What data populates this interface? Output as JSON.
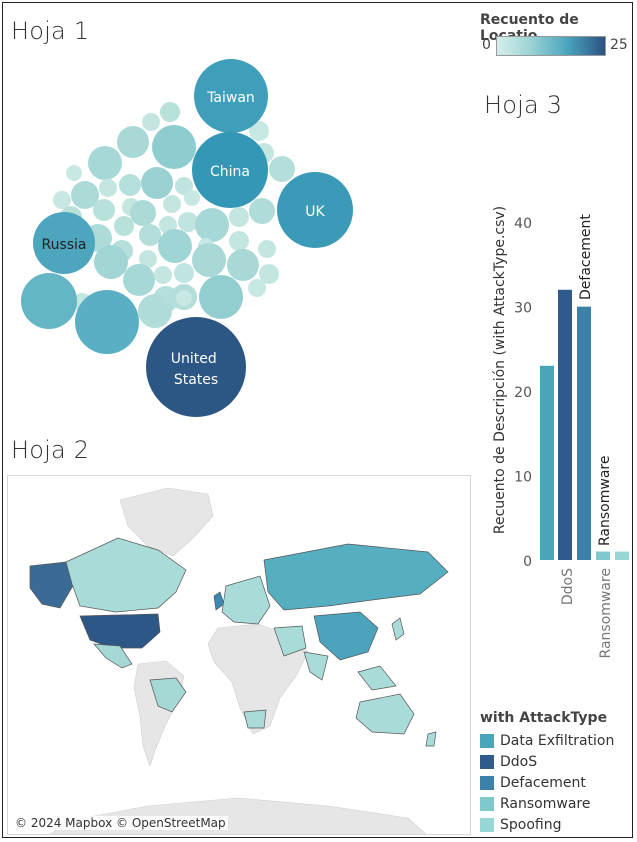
{
  "sheets": {
    "sheet1_title": "Hoja 1",
    "sheet2_title": "Hoja 2",
    "sheet3_title": "Hoja 3"
  },
  "colors": {
    "low": "#cdeae6",
    "mid": "#4aa7bd",
    "high": "#2b5283",
    "data_exfiltration": "#4aa5bb",
    "ddos": "#2e5b8b",
    "defacement": "#3b81a8",
    "ransomware": "#7ec8ce",
    "spoofing": "#99d6d6"
  },
  "bubble_legend": {
    "title": "Recuento de Locatio..",
    "min": "0",
    "max": "25"
  },
  "bubbles": {
    "labels": {
      "taiwan": "Taiwan",
      "china": "China",
      "uk": "UK",
      "russia": "Russia",
      "us": "United States"
    }
  },
  "chart_data": {
    "type": "bar",
    "title": "with Attack..",
    "ylabel": "Recuento de Descripción (with AttackType.csv)",
    "ylim": [
      0,
      45
    ],
    "yticks": [
      0,
      10,
      20,
      30,
      40
    ],
    "groups": [
      "DdoS",
      "Ransomware"
    ],
    "series": [
      {
        "name": "Data Exfiltration",
        "values": [
          23,
          null
        ]
      },
      {
        "name": "DdoS",
        "values": [
          32,
          null
        ]
      },
      {
        "name": "Defacement",
        "values": [
          30,
          null
        ]
      },
      {
        "name": "Ransomware",
        "values": [
          null,
          1
        ]
      },
      {
        "name": "Spoofing",
        "values": [
          null,
          1
        ]
      }
    ],
    "bar_labels": {
      "defacement": "Defacement",
      "ransomware": "Ransomware"
    }
  },
  "map": {
    "attribution": "© 2024 Mapbox © OpenStreetMap"
  },
  "attack_legend": {
    "title": "with AttackType",
    "items": [
      "Data Exfiltration",
      "DdoS",
      "Defacement",
      "Ransomware",
      "Spoofing"
    ]
  }
}
